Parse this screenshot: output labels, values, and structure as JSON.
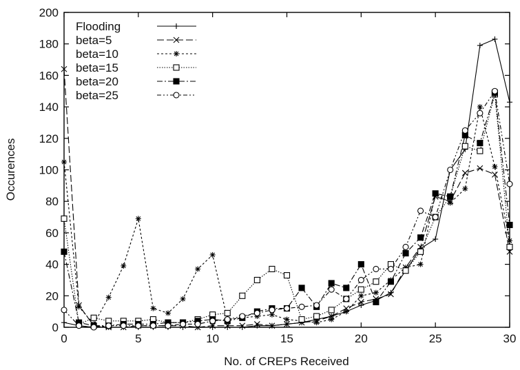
{
  "chart_data": {
    "type": "line",
    "title": "",
    "xlabel": "No. of CREPs Received",
    "ylabel": "Occurences",
    "xlim": [
      0,
      30
    ],
    "ylim": [
      0,
      200
    ],
    "xticks": [
      0,
      5,
      10,
      15,
      20,
      25,
      30
    ],
    "yticks": [
      0,
      20,
      40,
      60,
      80,
      100,
      120,
      140,
      160,
      180,
      200
    ],
    "grid": false,
    "legend_position": "top-left",
    "x": [
      0,
      1,
      2,
      3,
      4,
      5,
      6,
      7,
      8,
      9,
      10,
      11,
      12,
      13,
      14,
      15,
      16,
      17,
      18,
      19,
      20,
      21,
      22,
      23,
      24,
      25,
      26,
      27,
      28,
      29,
      30
    ],
    "series": [
      {
        "name": "Flooding",
        "marker": "plus",
        "dash": "solid",
        "values": [
          3,
          1,
          0,
          0,
          0,
          0,
          0,
          0,
          0,
          0,
          0,
          0,
          0,
          1,
          1,
          2,
          3,
          5,
          7,
          10,
          14,
          17,
          22,
          36,
          50,
          56,
          100,
          113,
          179,
          183,
          143
        ]
      },
      {
        "name": "beta=5",
        "marker": "x",
        "dash": "long-dash",
        "values": [
          164,
          14,
          1,
          0,
          0,
          1,
          1,
          1,
          1,
          0,
          1,
          1,
          1,
          2,
          1,
          2,
          3,
          4,
          7,
          12,
          16,
          18,
          21,
          38,
          51,
          83,
          80,
          98,
          101,
          97,
          48
        ]
      },
      {
        "name": "beta=10",
        "marker": "star",
        "dash": "dotted",
        "values": [
          105,
          13,
          2,
          19,
          39,
          69,
          12,
          9,
          18,
          37,
          46,
          5,
          6,
          7,
          8,
          5,
          4,
          3,
          5,
          10,
          20,
          22,
          30,
          38,
          40,
          85,
          79,
          88,
          140,
          102,
          55
        ]
      },
      {
        "name": "beta=15",
        "marker": "square-open",
        "dash": "fine-dotted",
        "values": [
          69,
          2,
          6,
          4,
          4,
          4,
          5,
          3,
          3,
          5,
          8,
          9,
          20,
          30,
          37,
          33,
          5,
          7,
          11,
          18,
          24,
          29,
          40,
          36,
          48,
          70,
          83,
          115,
          112,
          148,
          51
        ]
      },
      {
        "name": "beta=20",
        "marker": "square-filled",
        "dash": "dash-dot",
        "values": [
          48,
          3,
          1,
          1,
          2,
          2,
          2,
          3,
          3,
          4,
          5,
          4,
          6,
          10,
          12,
          12,
          25,
          13,
          28,
          25,
          40,
          16,
          29,
          47,
          57,
          85,
          83,
          122,
          117,
          149,
          65
        ]
      },
      {
        "name": "beta=25",
        "marker": "circle-open",
        "dash": "dash-dot-dot",
        "values": [
          11,
          1,
          0,
          1,
          1,
          1,
          1,
          1,
          2,
          2,
          4,
          5,
          7,
          9,
          11,
          12,
          13,
          14,
          24,
          18,
          30,
          37,
          37,
          51,
          74,
          70,
          100,
          125,
          136,
          150,
          91
        ]
      }
    ]
  }
}
